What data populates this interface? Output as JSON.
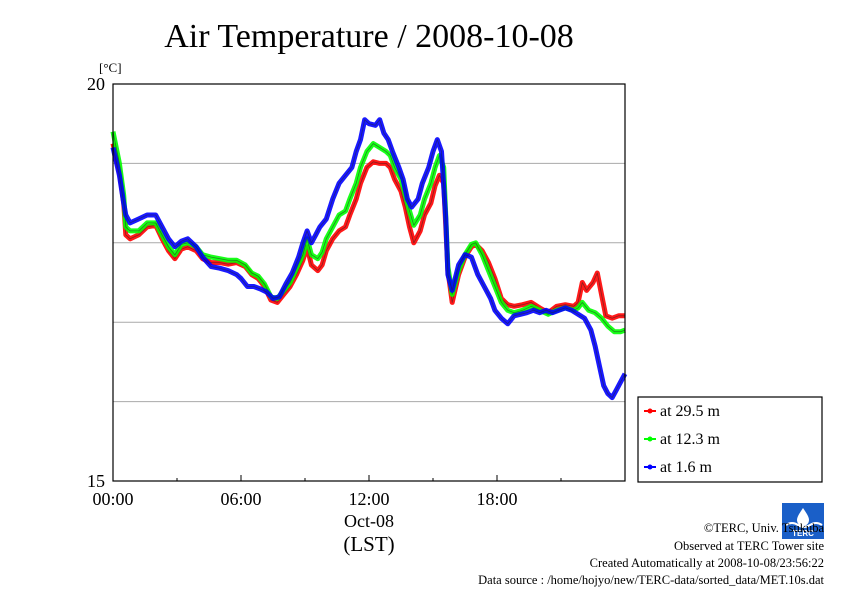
{
  "chart_data": {
    "type": "line",
    "title": "Air Temperature / 2008-10-08",
    "ylabel": "[°C]",
    "ylim": [
      15,
      20
    ],
    "yticks": [
      {
        "value": 20,
        "label": "20"
      },
      {
        "value": 15,
        "label": "15"
      }
    ],
    "grid_y": [
      16,
      17,
      18,
      19
    ],
    "xlim": [
      0,
      24
    ],
    "xticks": [
      {
        "value": 0,
        "label": "00:00"
      },
      {
        "value": 6,
        "label": "06:00"
      },
      {
        "value": 12,
        "label": "12:00"
      },
      {
        "value": 18,
        "label": "18:00"
      }
    ],
    "xlabel_date": "Oct-08",
    "xlabel": "(LST)",
    "legend_position": "bottom-right-outside",
    "series": [
      {
        "name": "at 29.5 m",
        "color": "#ff0000",
        "points": [
          [
            0,
            19.25
          ],
          [
            0.3,
            18.9
          ],
          [
            0.5,
            18.5
          ],
          [
            0.6,
            18.1
          ],
          [
            0.8,
            18.05
          ],
          [
            1.2,
            18.1
          ],
          [
            1.6,
            18.2
          ],
          [
            2.0,
            18.22
          ],
          [
            2.3,
            18.05
          ],
          [
            2.6,
            17.9
          ],
          [
            2.9,
            17.8
          ],
          [
            3.2,
            17.92
          ],
          [
            3.5,
            17.95
          ],
          [
            3.9,
            17.9
          ],
          [
            4.2,
            17.8
          ],
          [
            4.6,
            17.75
          ],
          [
            5.0,
            17.75
          ],
          [
            5.4,
            17.73
          ],
          [
            5.8,
            17.75
          ],
          [
            6.2,
            17.7
          ],
          [
            6.5,
            17.6
          ],
          [
            6.8,
            17.55
          ],
          [
            7.1,
            17.45
          ],
          [
            7.4,
            17.28
          ],
          [
            7.7,
            17.25
          ],
          [
            8.0,
            17.35
          ],
          [
            8.3,
            17.45
          ],
          [
            8.6,
            17.6
          ],
          [
            8.9,
            17.78
          ],
          [
            9.1,
            17.95
          ],
          [
            9.3,
            17.72
          ],
          [
            9.6,
            17.65
          ],
          [
            9.8,
            17.72
          ],
          [
            10.0,
            17.9
          ],
          [
            10.3,
            18.05
          ],
          [
            10.6,
            18.15
          ],
          [
            10.9,
            18.2
          ],
          [
            11.1,
            18.35
          ],
          [
            11.4,
            18.55
          ],
          [
            11.6,
            18.75
          ],
          [
            11.9,
            18.95
          ],
          [
            12.2,
            19.02
          ],
          [
            12.5,
            19.0
          ],
          [
            12.8,
            19.0
          ],
          [
            13.0,
            18.95
          ],
          [
            13.2,
            18.8
          ],
          [
            13.5,
            18.65
          ],
          [
            13.7,
            18.45
          ],
          [
            13.9,
            18.2
          ],
          [
            14.1,
            18.0
          ],
          [
            14.4,
            18.15
          ],
          [
            14.6,
            18.35
          ],
          [
            14.9,
            18.5
          ],
          [
            15.1,
            18.72
          ],
          [
            15.3,
            18.85
          ],
          [
            15.5,
            18.75
          ],
          [
            15.7,
            17.65
          ],
          [
            15.9,
            17.25
          ],
          [
            16.2,
            17.6
          ],
          [
            16.5,
            17.82
          ],
          [
            16.8,
            17.95
          ],
          [
            17.0,
            17.98
          ],
          [
            17.3,
            17.9
          ],
          [
            17.6,
            17.75
          ],
          [
            17.9,
            17.55
          ],
          [
            18.2,
            17.3
          ],
          [
            18.5,
            17.22
          ],
          [
            18.8,
            17.2
          ],
          [
            19.2,
            17.22
          ],
          [
            19.6,
            17.25
          ],
          [
            20.0,
            17.18
          ],
          [
            20.4,
            17.12
          ],
          [
            20.8,
            17.2
          ],
          [
            21.2,
            17.22
          ],
          [
            21.6,
            17.2
          ],
          [
            21.8,
            17.25
          ],
          [
            22.0,
            17.5
          ],
          [
            22.2,
            17.4
          ],
          [
            22.5,
            17.5
          ],
          [
            22.7,
            17.62
          ],
          [
            22.9,
            17.35
          ],
          [
            23.1,
            17.08
          ],
          [
            23.4,
            17.05
          ],
          [
            23.7,
            17.08
          ],
          [
            24.0,
            17.08
          ]
        ]
      },
      {
        "name": "at 12.3 m",
        "color": "#00ff00",
        "points": [
          [
            0,
            19.4
          ],
          [
            0.3,
            19.0
          ],
          [
            0.5,
            18.6
          ],
          [
            0.6,
            18.2
          ],
          [
            0.8,
            18.15
          ],
          [
            1.2,
            18.15
          ],
          [
            1.6,
            18.25
          ],
          [
            2.0,
            18.25
          ],
          [
            2.3,
            18.1
          ],
          [
            2.6,
            17.95
          ],
          [
            2.9,
            17.85
          ],
          [
            3.2,
            17.98
          ],
          [
            3.5,
            18.0
          ],
          [
            3.9,
            17.95
          ],
          [
            4.2,
            17.85
          ],
          [
            4.6,
            17.82
          ],
          [
            5.0,
            17.8
          ],
          [
            5.4,
            17.78
          ],
          [
            5.8,
            17.78
          ],
          [
            6.2,
            17.72
          ],
          [
            6.5,
            17.62
          ],
          [
            6.8,
            17.58
          ],
          [
            7.1,
            17.48
          ],
          [
            7.4,
            17.32
          ],
          [
            7.7,
            17.3
          ],
          [
            8.0,
            17.4
          ],
          [
            8.3,
            17.5
          ],
          [
            8.6,
            17.68
          ],
          [
            8.9,
            17.85
          ],
          [
            9.1,
            18.05
          ],
          [
            9.3,
            17.85
          ],
          [
            9.6,
            17.8
          ],
          [
            9.8,
            17.88
          ],
          [
            10.0,
            18.05
          ],
          [
            10.3,
            18.2
          ],
          [
            10.6,
            18.35
          ],
          [
            10.9,
            18.4
          ],
          [
            11.1,
            18.55
          ],
          [
            11.4,
            18.75
          ],
          [
            11.6,
            18.95
          ],
          [
            11.9,
            19.15
          ],
          [
            12.2,
            19.25
          ],
          [
            12.5,
            19.2
          ],
          [
            12.8,
            19.15
          ],
          [
            13.0,
            19.1
          ],
          [
            13.2,
            18.95
          ],
          [
            13.5,
            18.8
          ],
          [
            13.7,
            18.6
          ],
          [
            13.9,
            18.4
          ],
          [
            14.1,
            18.22
          ],
          [
            14.4,
            18.35
          ],
          [
            14.6,
            18.55
          ],
          [
            14.9,
            18.75
          ],
          [
            15.1,
            18.95
          ],
          [
            15.3,
            19.1
          ],
          [
            15.5,
            18.95
          ],
          [
            15.7,
            17.7
          ],
          [
            15.9,
            17.35
          ],
          [
            16.2,
            17.65
          ],
          [
            16.5,
            17.85
          ],
          [
            16.8,
            17.98
          ],
          [
            17.0,
            18.0
          ],
          [
            17.3,
            17.85
          ],
          [
            17.6,
            17.65
          ],
          [
            17.9,
            17.45
          ],
          [
            18.2,
            17.25
          ],
          [
            18.5,
            17.15
          ],
          [
            18.8,
            17.12
          ],
          [
            19.2,
            17.15
          ],
          [
            19.6,
            17.2
          ],
          [
            20.0,
            17.15
          ],
          [
            20.4,
            17.1
          ],
          [
            20.8,
            17.15
          ],
          [
            21.2,
            17.18
          ],
          [
            21.6,
            17.15
          ],
          [
            21.8,
            17.18
          ],
          [
            22.0,
            17.25
          ],
          [
            22.3,
            17.15
          ],
          [
            22.6,
            17.12
          ],
          [
            22.9,
            17.05
          ],
          [
            23.2,
            16.95
          ],
          [
            23.5,
            16.88
          ],
          [
            23.8,
            16.88
          ],
          [
            24.0,
            16.9
          ]
        ]
      },
      {
        "name": "at 1.6 m",
        "color": "#0000ff",
        "points": [
          [
            0,
            19.2
          ],
          [
            0.3,
            18.85
          ],
          [
            0.5,
            18.5
          ],
          [
            0.6,
            18.35
          ],
          [
            0.8,
            18.25
          ],
          [
            1.2,
            18.3
          ],
          [
            1.6,
            18.35
          ],
          [
            2.0,
            18.35
          ],
          [
            2.3,
            18.2
          ],
          [
            2.6,
            18.05
          ],
          [
            2.9,
            17.95
          ],
          [
            3.2,
            18.02
          ],
          [
            3.5,
            18.05
          ],
          [
            3.9,
            17.95
          ],
          [
            4.2,
            17.82
          ],
          [
            4.6,
            17.7
          ],
          [
            5.0,
            17.68
          ],
          [
            5.4,
            17.65
          ],
          [
            5.8,
            17.6
          ],
          [
            6.0,
            17.55
          ],
          [
            6.3,
            17.45
          ],
          [
            6.6,
            17.45
          ],
          [
            6.9,
            17.42
          ],
          [
            7.2,
            17.38
          ],
          [
            7.5,
            17.3
          ],
          [
            7.8,
            17.32
          ],
          [
            8.1,
            17.48
          ],
          [
            8.4,
            17.62
          ],
          [
            8.7,
            17.82
          ],
          [
            8.9,
            18.0
          ],
          [
            9.1,
            18.15
          ],
          [
            9.3,
            18.0
          ],
          [
            9.5,
            18.1
          ],
          [
            9.7,
            18.2
          ],
          [
            10.0,
            18.3
          ],
          [
            10.3,
            18.55
          ],
          [
            10.6,
            18.75
          ],
          [
            10.9,
            18.85
          ],
          [
            11.2,
            18.95
          ],
          [
            11.4,
            19.15
          ],
          [
            11.6,
            19.3
          ],
          [
            11.8,
            19.55
          ],
          [
            12.0,
            19.5
          ],
          [
            12.3,
            19.48
          ],
          [
            12.5,
            19.55
          ],
          [
            12.7,
            19.38
          ],
          [
            12.9,
            19.3
          ],
          [
            13.1,
            19.15
          ],
          [
            13.4,
            18.95
          ],
          [
            13.6,
            18.8
          ],
          [
            13.8,
            18.55
          ],
          [
            14.0,
            18.45
          ],
          [
            14.3,
            18.55
          ],
          [
            14.5,
            18.75
          ],
          [
            14.8,
            18.95
          ],
          [
            15.0,
            19.15
          ],
          [
            15.2,
            19.3
          ],
          [
            15.4,
            19.15
          ],
          [
            15.6,
            18.3
          ],
          [
            15.7,
            17.6
          ],
          [
            15.9,
            17.4
          ],
          [
            16.2,
            17.72
          ],
          [
            16.5,
            17.85
          ],
          [
            16.8,
            17.82
          ],
          [
            17.1,
            17.6
          ],
          [
            17.4,
            17.45
          ],
          [
            17.7,
            17.3
          ],
          [
            17.9,
            17.15
          ],
          [
            18.2,
            17.05
          ],
          [
            18.5,
            16.98
          ],
          [
            18.8,
            17.08
          ],
          [
            19.1,
            17.1
          ],
          [
            19.4,
            17.12
          ],
          [
            19.7,
            17.15
          ],
          [
            20.0,
            17.12
          ],
          [
            20.3,
            17.15
          ],
          [
            20.6,
            17.12
          ],
          [
            20.9,
            17.15
          ],
          [
            21.2,
            17.18
          ],
          [
            21.5,
            17.15
          ],
          [
            21.8,
            17.1
          ],
          [
            22.1,
            17.05
          ],
          [
            22.4,
            16.9
          ],
          [
            22.6,
            16.7
          ],
          [
            22.8,
            16.45
          ],
          [
            23.0,
            16.2
          ],
          [
            23.2,
            16.1
          ],
          [
            23.4,
            16.05
          ],
          [
            23.6,
            16.15
          ],
          [
            23.8,
            16.25
          ],
          [
            24.0,
            16.35
          ]
        ]
      }
    ]
  },
  "credits": {
    "copyright": "©TERC, Univ. Tsukuba",
    "site": "Observed at TERC Tower site",
    "created": "Created Automatically at 2008-10-08/23:56:22",
    "source": "Data source : /home/hojyo/new/TERC-data/sorted_data/MET.10s.dat",
    "logo_text": "TERC"
  }
}
